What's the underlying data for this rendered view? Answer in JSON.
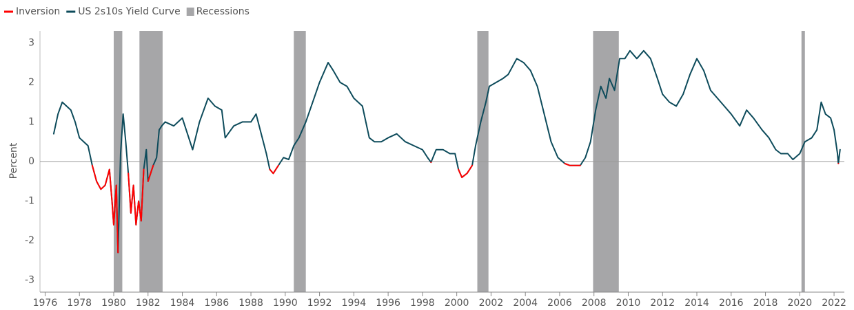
{
  "chart_data": {
    "type": "line",
    "y_label": "Percent",
    "x": [
      1976.5,
      1976.75,
      1977,
      1977.25,
      1977.5,
      1977.75,
      1978,
      1978.25,
      1978.5,
      1978.75,
      1979,
      1979.25,
      1979.5,
      1979.75,
      1979.9,
      1980,
      1980.15,
      1980.25,
      1980.4,
      1980.55,
      1980.7,
      1980.85,
      1981,
      1981.15,
      1981.3,
      1981.45,
      1981.6,
      1981.75,
      1981.9,
      1982,
      1982.15,
      1982.3,
      1982.5,
      1982.65,
      1982.8,
      1983,
      1983.5,
      1984,
      1984.3,
      1984.6,
      1985,
      1985.5,
      1985.9,
      1986.3,
      1986.5,
      1987,
      1987.5,
      1988,
      1988.3,
      1988.6,
      1988.9,
      1989.1,
      1989.3,
      1989.6,
      1989.9,
      1990.2,
      1990.5,
      1990.8,
      1991.2,
      1991.6,
      1992,
      1992.5,
      1992.8,
      1993.2,
      1993.6,
      1994,
      1994.5,
      1994.9,
      1995.2,
      1995.6,
      1996,
      1996.5,
      1997,
      1997.5,
      1998,
      1998.3,
      1998.5,
      1998.8,
      1999.2,
      1999.6,
      1999.9,
      2000.1,
      2000.3,
      2000.6,
      2000.9,
      2001.1,
      2001.4,
      2001.7,
      2001.9,
      2002.3,
      2002.7,
      2003,
      2003.5,
      2003.9,
      2004.3,
      2004.7,
      2005.1,
      2005.5,
      2005.9,
      2006.3,
      2006.6,
      2006.9,
      2007.2,
      2007.5,
      2007.8,
      2008.1,
      2008.4,
      2008.7,
      2008.9,
      2009.2,
      2009.5,
      2009.8,
      2010.1,
      2010.5,
      2010.9,
      2011.3,
      2011.7,
      2012,
      2012.4,
      2012.8,
      2013.2,
      2013.6,
      2014,
      2014.4,
      2014.8,
      2015.2,
      2015.6,
      2016,
      2016.5,
      2016.9,
      2017.3,
      2017.8,
      2018.2,
      2018.6,
      2018.9,
      2019.3,
      2019.6,
      2020,
      2020.3,
      2020.7,
      2021,
      2021.25,
      2021.5,
      2021.8,
      2022,
      2022.2,
      2022.25,
      2022.35
    ],
    "series": [
      {
        "name": "US 2s10s Yield Curve",
        "color": "#0d4b5b",
        "values": [
          0.7,
          1.2,
          1.5,
          1.4,
          1.3,
          1.0,
          0.6,
          0.5,
          0.4,
          -0.1,
          -0.5,
          -0.7,
          -0.6,
          -0.2,
          -1.0,
          -1.6,
          -0.6,
          -2.3,
          0.2,
          1.2,
          0.5,
          -0.3,
          -1.3,
          -0.6,
          -1.6,
          -1.0,
          -1.5,
          -0.2,
          0.3,
          -0.5,
          -0.3,
          -0.1,
          0.1,
          0.8,
          0.9,
          1.0,
          0.9,
          1.1,
          0.7,
          0.3,
          1.0,
          1.6,
          1.4,
          1.3,
          0.6,
          0.9,
          1.0,
          1.0,
          1.2,
          0.7,
          0.2,
          -0.2,
          -0.3,
          -0.1,
          0.1,
          0.05,
          0.4,
          0.6,
          1.0,
          1.5,
          2.0,
          2.5,
          2.3,
          2.0,
          1.9,
          1.6,
          1.4,
          0.6,
          0.5,
          0.5,
          0.6,
          0.7,
          0.5,
          0.4,
          0.3,
          0.1,
          -0.02,
          0.3,
          0.3,
          0.2,
          0.2,
          -0.2,
          -0.4,
          -0.3,
          -0.1,
          0.4,
          1.0,
          1.5,
          1.9,
          2.0,
          2.1,
          2.2,
          2.6,
          2.5,
          2.3,
          1.9,
          1.2,
          0.5,
          0.1,
          -0.05,
          -0.1,
          -0.1,
          -0.1,
          0.1,
          0.5,
          1.3,
          1.9,
          1.6,
          2.1,
          1.8,
          2.6,
          2.6,
          2.8,
          2.6,
          2.8,
          2.6,
          2.1,
          1.7,
          1.5,
          1.4,
          1.7,
          2.2,
          2.6,
          2.3,
          1.8,
          1.6,
          1.4,
          1.2,
          0.9,
          1.3,
          1.1,
          0.8,
          0.6,
          0.3,
          0.2,
          0.2,
          0.05,
          0.2,
          0.5,
          0.6,
          0.8,
          1.5,
          1.2,
          1.1,
          0.8,
          0.2,
          -0.05,
          0.3
        ]
      }
    ],
    "inversion": {
      "name": "Inversion",
      "color": "#ff0000"
    },
    "recessions": {
      "name": "Recessions",
      "color": "#a6a6a8",
      "ranges": [
        [
          1980.0,
          1980.5
        ],
        [
          1981.5,
          1982.85
        ],
        [
          1990.5,
          1991.2
        ],
        [
          2001.2,
          2001.85
        ],
        [
          2007.95,
          2009.45
        ],
        [
          2020.1,
          2020.3
        ]
      ]
    },
    "xlim": [
      1975.7,
      2022.6
    ],
    "xticks": [
      1976,
      1978,
      1980,
      1982,
      1984,
      1986,
      1988,
      1990,
      1992,
      1994,
      1996,
      1998,
      2000,
      2002,
      2004,
      2006,
      2008,
      2010,
      2012,
      2014,
      2016,
      2018,
      2020,
      2022
    ],
    "ylim": [
      -3.3,
      3.3
    ],
    "yticks": [
      -3,
      -2,
      -1,
      0,
      1,
      2,
      3
    ]
  }
}
